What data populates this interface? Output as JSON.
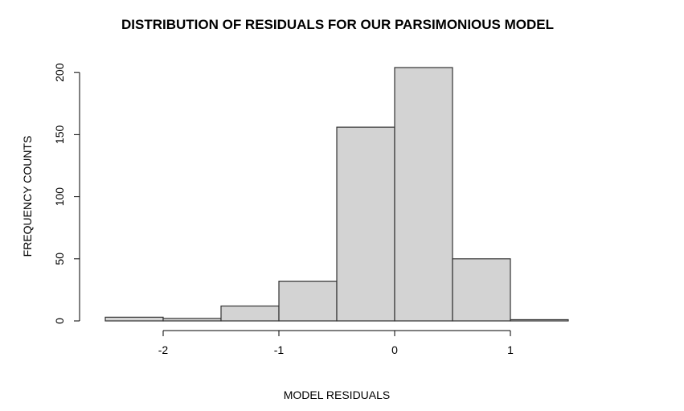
{
  "chart_data": {
    "type": "histogram",
    "title": "DISTRIBUTION OF RESIDUALS FOR OUR PARSIMONIOUS MODEL",
    "xlabel": "MODEL RESIDUALS",
    "ylabel": "FREQUENCY COUNTS",
    "bins": [
      {
        "x0": -2.5,
        "x1": -2.0,
        "count": 3
      },
      {
        "x0": -2.0,
        "x1": -1.5,
        "count": 2
      },
      {
        "x0": -1.5,
        "x1": -1.0,
        "count": 12
      },
      {
        "x0": -1.0,
        "x1": -0.5,
        "count": 32
      },
      {
        "x0": -0.5,
        "x1": 0.0,
        "count": 156
      },
      {
        "x0": 0.0,
        "x1": 0.5,
        "count": 204
      },
      {
        "x0": 0.5,
        "x1": 1.0,
        "count": 50
      },
      {
        "x0": 1.0,
        "x1": 1.5,
        "count": 1
      }
    ],
    "xlim": [
      -2.5,
      1.5
    ],
    "ylim": [
      0,
      204
    ],
    "x_ticks": [
      -2,
      -1,
      0,
      1
    ],
    "x_tick_labels": [
      "-2",
      "-1",
      "0",
      "1"
    ],
    "y_ticks": [
      0,
      50,
      100,
      150,
      200
    ],
    "y_tick_labels": [
      "0",
      "50",
      "100",
      "150",
      "200"
    ],
    "grid": false,
    "colors": {
      "bar_fill": "#d3d3d3",
      "bar_stroke": "#333333",
      "axis": "#000000"
    }
  }
}
